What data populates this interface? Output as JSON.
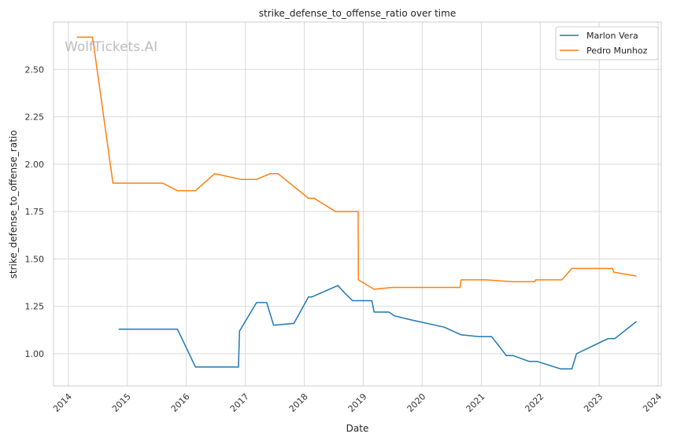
{
  "watermark": "WolfTickets.AI",
  "chart_data": {
    "type": "line",
    "title": "strike_defense_to_offense_ratio over time",
    "xlabel": "Date",
    "ylabel": "strike_defense_to_offense_ratio",
    "x_range": [
      "2013-10-01",
      "2024-01-20"
    ],
    "ylim": [
      0.83,
      2.75
    ],
    "x_ticks": [
      "2014",
      "2015",
      "2016",
      "2017",
      "2018",
      "2019",
      "2020",
      "2021",
      "2022",
      "2023",
      "2024"
    ],
    "y_ticks": [
      "1.00",
      "1.25",
      "1.50",
      "1.75",
      "2.00",
      "2.25",
      "2.50"
    ],
    "grid": true,
    "legend_position": "top-right",
    "colors": {
      "Marlon Vera": "#1f77b4",
      "Pedro Munhoz": "#ff7f0e"
    },
    "series": [
      {
        "name": "Marlon Vera",
        "color": "#1f77b4",
        "points": [
          [
            "2014-11-08",
            1.13
          ],
          [
            "2015-11-07",
            1.13
          ],
          [
            "2016-02-27",
            0.93
          ],
          [
            "2016-11-19",
            0.93
          ],
          [
            "2016-11-26",
            1.12
          ],
          [
            "2017-03-11",
            1.27
          ],
          [
            "2017-05-13",
            1.27
          ],
          [
            "2017-06-25",
            1.15
          ],
          [
            "2017-10-28",
            1.16
          ],
          [
            "2018-01-27",
            1.3
          ],
          [
            "2018-02-17",
            1.3
          ],
          [
            "2018-07-28",
            1.36
          ],
          [
            "2018-09-08",
            1.32
          ],
          [
            "2018-10-27",
            1.28
          ],
          [
            "2019-02-23",
            1.28
          ],
          [
            "2019-03-09",
            1.22
          ],
          [
            "2019-06-08",
            1.22
          ],
          [
            "2019-07-13",
            1.2
          ],
          [
            "2019-10-18",
            1.18
          ],
          [
            "2020-05-16",
            1.14
          ],
          [
            "2020-08-29",
            1.1
          ],
          [
            "2020-12-19",
            1.09
          ],
          [
            "2021-01-30",
            1.09
          ],
          [
            "2021-03-06",
            1.09
          ],
          [
            "2021-06-05",
            0.99
          ],
          [
            "2021-07-17",
            0.99
          ],
          [
            "2021-10-23",
            0.96
          ],
          [
            "2021-12-11",
            0.96
          ],
          [
            "2022-05-07",
            0.92
          ],
          [
            "2022-07-16",
            0.92
          ],
          [
            "2022-08-13",
            1.0
          ],
          [
            "2023-02-25",
            1.08
          ],
          [
            "2023-04-08",
            1.08
          ],
          [
            "2023-08-19",
            1.17
          ]
        ]
      },
      {
        "name": "Pedro Munhoz",
        "color": "#ff7f0e",
        "points": [
          [
            "2014-02-22",
            2.67
          ],
          [
            "2014-05-31",
            2.67
          ],
          [
            "2014-10-04",
            1.9
          ],
          [
            "2015-08-08",
            1.9
          ],
          [
            "2015-11-07",
            1.86
          ],
          [
            "2016-02-27",
            1.86
          ],
          [
            "2016-06-25",
            1.95
          ],
          [
            "2016-12-03",
            1.92
          ],
          [
            "2017-03-11",
            1.92
          ],
          [
            "2017-06-03",
            1.95
          ],
          [
            "2017-07-22",
            1.95
          ],
          [
            "2018-01-27",
            1.82
          ],
          [
            "2018-03-03",
            1.82
          ],
          [
            "2018-07-14",
            1.75
          ],
          [
            "2018-11-30",
            1.75
          ],
          [
            "2018-12-02",
            1.39
          ],
          [
            "2019-03-09",
            1.34
          ],
          [
            "2019-06-29",
            1.35
          ],
          [
            "2020-08-22",
            1.35
          ],
          [
            "2020-08-29",
            1.39
          ],
          [
            "2021-01-30",
            1.39
          ],
          [
            "2021-07-17",
            1.38
          ],
          [
            "2021-11-27",
            1.38
          ],
          [
            "2021-12-04",
            1.39
          ],
          [
            "2022-05-14",
            1.39
          ],
          [
            "2022-07-16",
            1.45
          ],
          [
            "2023-03-25",
            1.45
          ],
          [
            "2023-04-01",
            1.43
          ],
          [
            "2023-08-19",
            1.41
          ]
        ]
      }
    ]
  }
}
